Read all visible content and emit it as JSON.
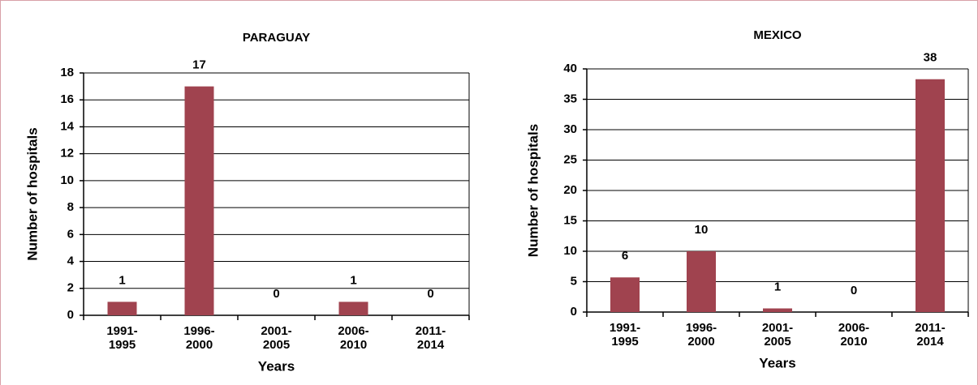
{
  "chart_data": [
    {
      "type": "bar",
      "title": "PARAGUAY",
      "x_label": "Years",
      "y_label": "Number of hospitals",
      "categories": [
        "1991-1995",
        "1996-2000",
        "2001-2005",
        "2006-2010",
        "2011-2014"
      ],
      "values": [
        1,
        17,
        0,
        1,
        0
      ],
      "color": "#a0434f",
      "ylim": [
        0,
        18
      ],
      "yticks": [
        0,
        2,
        4,
        6,
        8,
        10,
        12,
        14,
        16,
        18
      ],
      "grid": true
    },
    {
      "type": "bar",
      "title": "MEXICO",
      "x_label": "Years",
      "y_label": "Number of hospitals",
      "categories": [
        "1991-1995",
        "1996-2000",
        "2001-2005",
        "2006-2010",
        "2011-2014"
      ],
      "values": [
        5.7,
        10,
        0.6,
        0,
        38.3
      ],
      "value_labels": [
        "6",
        "10",
        "1",
        "0",
        "38"
      ],
      "color": "#a0434f",
      "ylim": [
        0,
        40
      ],
      "yticks": [
        0,
        5,
        10,
        15,
        20,
        25,
        30,
        35,
        40
      ],
      "grid": true
    }
  ]
}
